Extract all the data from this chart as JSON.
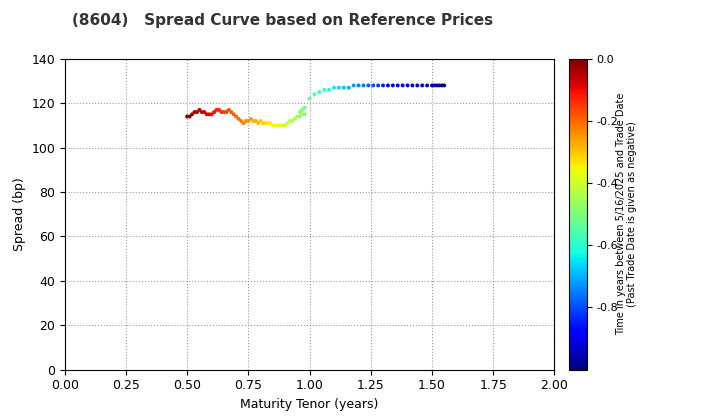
{
  "title": "(8604)   Spread Curve based on Reference Prices",
  "xlabel": "Maturity Tenor (years)",
  "ylabel": "Spread (bp)",
  "colorbar_label_line1": "Time in years between 5/16/2025 and Trade Date",
  "colorbar_label_line2": "(Past Trade Date is given as negative)",
  "xlim": [
    0.0,
    2.0
  ],
  "ylim": [
    0,
    140
  ],
  "xticks": [
    0.0,
    0.25,
    0.5,
    0.75,
    1.0,
    1.25,
    1.5,
    1.75,
    2.0
  ],
  "yticks": [
    0,
    20,
    40,
    60,
    80,
    100,
    120,
    140
  ],
  "cmap": "jet",
  "clim": [
    -1.0,
    0.0
  ],
  "cticks": [
    0.0,
    -0.2,
    -0.4,
    -0.6,
    -0.8
  ],
  "points_group1": {
    "tenors": [
      0.5,
      0.51,
      0.52,
      0.53,
      0.54,
      0.55,
      0.56,
      0.57,
      0.58,
      0.59,
      0.6,
      0.61,
      0.62,
      0.63,
      0.64,
      0.65,
      0.66,
      0.67,
      0.68,
      0.69,
      0.7,
      0.71,
      0.72,
      0.73,
      0.74,
      0.75,
      0.76,
      0.77,
      0.78,
      0.79,
      0.8,
      0.81,
      0.82,
      0.83,
      0.84,
      0.85,
      0.86,
      0.87,
      0.88,
      0.89,
      0.9,
      0.91,
      0.92,
      0.93,
      0.94,
      0.95,
      0.96,
      0.97,
      0.98
    ],
    "spreads": [
      114,
      114,
      115,
      116,
      116,
      117,
      116,
      116,
      115,
      115,
      115,
      116,
      117,
      117,
      116,
      116,
      116,
      117,
      116,
      115,
      114,
      113,
      112,
      111,
      112,
      112,
      113,
      112,
      112,
      111,
      112,
      111,
      111,
      111,
      111,
      110,
      110,
      110,
      110,
      110,
      110,
      111,
      112,
      112,
      113,
      114,
      114,
      115,
      115
    ],
    "time_values": [
      0.0,
      -0.01,
      -0.02,
      -0.03,
      -0.04,
      -0.05,
      -0.06,
      -0.07,
      -0.08,
      -0.09,
      -0.1,
      -0.11,
      -0.12,
      -0.13,
      -0.14,
      -0.15,
      -0.16,
      -0.17,
      -0.18,
      -0.19,
      -0.2,
      -0.21,
      -0.22,
      -0.23,
      -0.24,
      -0.25,
      -0.26,
      -0.27,
      -0.28,
      -0.29,
      -0.3,
      -0.31,
      -0.32,
      -0.33,
      -0.34,
      -0.35,
      -0.36,
      -0.37,
      -0.38,
      -0.39,
      -0.4,
      -0.41,
      -0.42,
      -0.43,
      -0.44,
      -0.45,
      -0.46,
      -0.47,
      -0.48
    ]
  },
  "points_group2": {
    "tenors": [
      0.96,
      0.97,
      0.98,
      1.0,
      1.02,
      1.04,
      1.06,
      1.08,
      1.1,
      1.12,
      1.14,
      1.16,
      1.18,
      1.2,
      1.22,
      1.24,
      1.26,
      1.28,
      1.3,
      1.32,
      1.34,
      1.36,
      1.38,
      1.4,
      1.42,
      1.44,
      1.46,
      1.48,
      1.5,
      1.51,
      1.52,
      1.53,
      1.54,
      1.55
    ],
    "spreads": [
      116,
      117,
      118,
      122,
      124,
      125,
      126,
      126,
      127,
      127,
      127,
      127,
      128,
      128,
      128,
      128,
      128,
      128,
      128,
      128,
      128,
      128,
      128,
      128,
      128,
      128,
      128,
      128,
      128,
      128,
      128,
      128,
      128,
      128
    ],
    "time_values": [
      -0.48,
      -0.5,
      -0.52,
      -0.54,
      -0.56,
      -0.58,
      -0.6,
      -0.62,
      -0.64,
      -0.66,
      -0.68,
      -0.7,
      -0.72,
      -0.74,
      -0.76,
      -0.78,
      -0.8,
      -0.82,
      -0.84,
      -0.86,
      -0.87,
      -0.88,
      -0.89,
      -0.9,
      -0.91,
      -0.92,
      -0.93,
      -0.94,
      -0.95,
      -0.96,
      -0.97,
      -0.97,
      -0.98,
      -0.99
    ]
  },
  "title_fontsize": 11,
  "axis_fontsize": 9,
  "tick_fontsize": 9
}
